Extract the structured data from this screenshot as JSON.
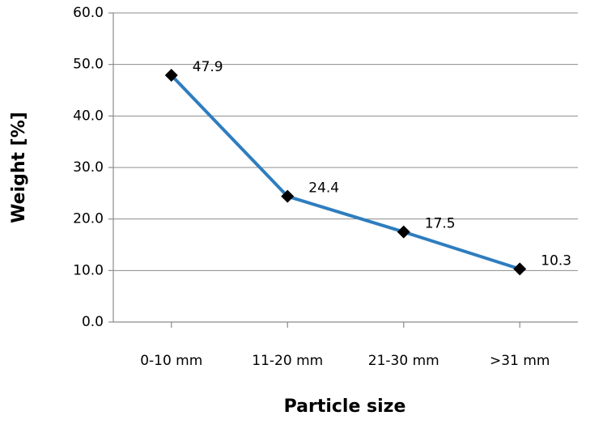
{
  "chart_data": {
    "type": "line",
    "x_label": "Particle size",
    "y_label": "Weight [%]",
    "categories": [
      "0-10 mm",
      "11-20 mm",
      "21-30 mm",
      ">31 mm"
    ],
    "series": [
      {
        "name": "Weight",
        "color": "#2e7dbf",
        "marker_color": "#000000",
        "values": [
          47.9,
          24.4,
          17.5,
          10.3
        ]
      }
    ],
    "ylim": [
      0,
      60
    ],
    "yticks": [
      {
        "value": 0,
        "label": "0.0"
      },
      {
        "value": 10,
        "label": "10.0"
      },
      {
        "value": 20,
        "label": "20.0"
      },
      {
        "value": 30,
        "label": "30.0"
      },
      {
        "value": 40,
        "label": "40.0"
      },
      {
        "value": 50,
        "label": "50.0"
      },
      {
        "value": 60,
        "label": "60.0"
      }
    ],
    "grid": true
  }
}
